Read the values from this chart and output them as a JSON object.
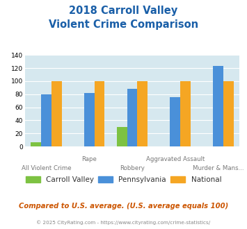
{
  "title_line1": "2018 Carroll Valley",
  "title_line2": "Violent Crime Comparison",
  "categories": [
    "All Violent Crime",
    "Rape",
    "Robbery",
    "Aggravated Assault",
    "Murder & Mans..."
  ],
  "carroll_valley": [
    7,
    0,
    30,
    0,
    0
  ],
  "pennsylvania": [
    80,
    82,
    88,
    76,
    123
  ],
  "national": [
    100,
    100,
    100,
    100,
    100
  ],
  "colors": {
    "carroll_valley": "#7dc242",
    "pennsylvania": "#4a90d9",
    "national": "#f5a623"
  },
  "ylim": [
    0,
    140
  ],
  "yticks": [
    0,
    20,
    40,
    60,
    80,
    100,
    120,
    140
  ],
  "background_color": "#d6e8ef",
  "title_color": "#1a5fa8",
  "legend_labels": [
    "Carroll Valley",
    "Pennsylvania",
    "National"
  ],
  "footer_text": "Compared to U.S. average. (U.S. average equals 100)",
  "credit_text": "© 2025 CityRating.com - https://www.cityrating.com/crime-statistics/",
  "footer_color": "#cc5500",
  "credit_color": "#888888",
  "top_xlabels": [
    "",
    "Rape",
    "",
    "Aggravated Assault",
    ""
  ],
  "bottom_xlabels": [
    "All Violent Crime",
    "",
    "Robbery",
    "",
    "Murder & Mans..."
  ]
}
